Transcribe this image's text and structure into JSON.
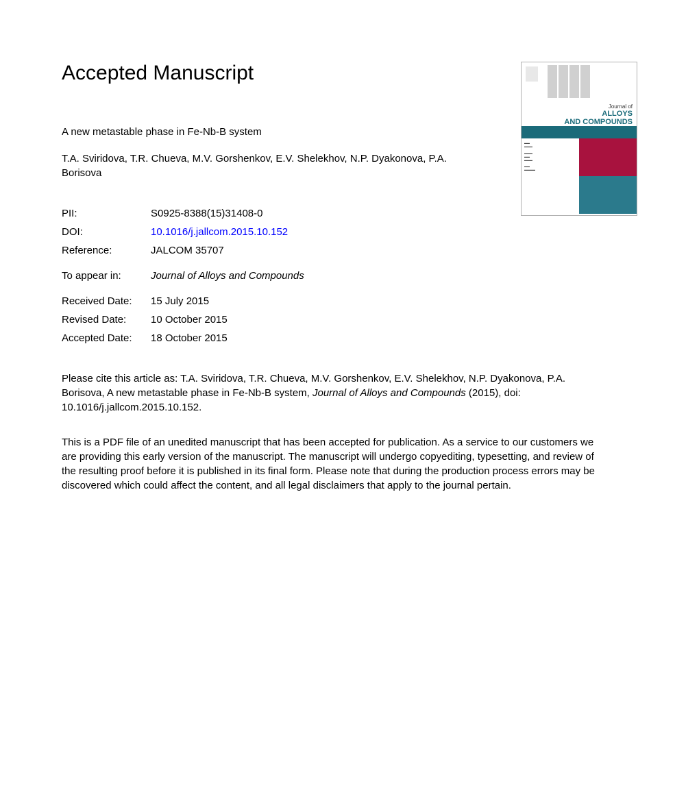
{
  "heading": "Accepted Manuscript",
  "article": {
    "title": "A new metastable phase in Fe-Nb-B system",
    "authors": "T.A. Sviridova, T.R. Chueva, M.V. Gorshenkov, E.V. Shelekhov, N.P. Dyakonova, P.A. Borisova"
  },
  "meta": {
    "pii_label": "PII:",
    "pii_value": "S0925-8388(15)31408-0",
    "doi_label": "DOI:",
    "doi_value": "10.1016/j.jallcom.2015.10.152",
    "ref_label": "Reference:",
    "ref_value": "JALCOM 35707",
    "appear_label": "To appear in:",
    "appear_value": "Journal of Alloys and Compounds",
    "received_label": "Received Date:",
    "received_value": "15 July 2015",
    "revised_label": "Revised Date:",
    "revised_value": "10 October 2015",
    "accepted_label": "Accepted Date:",
    "accepted_value": "18 October 2015"
  },
  "citation": {
    "prefix": "Please cite this article as: T.A. Sviridova, T.R. Chueva, M.V. Gorshenkov, E.V. Shelekhov, N.P. Dyakonova, P.A. Borisova, A new metastable phase in Fe-Nb-B system, ",
    "journal": "Journal of Alloys and Compounds",
    "suffix": " (2015), doi: 10.1016/j.jallcom.2015.10.152."
  },
  "disclaimer": "This is a PDF file of an unedited manuscript that has been accepted for publication. As a service to our customers we are providing this early version of the manuscript. The manuscript will undergo copyediting, typesetting, and review of the resulting proof before it is published in its final form. Please note that during the production process errors may be discovered which could affect the content, and all legal disclaimers that apply to the journal pertain.",
  "cover": {
    "journal_of": "Journal of",
    "line1": "ALLOYS",
    "line2": "AND COMPOUNDS",
    "colors": {
      "teal": "#1a6b7a",
      "maroon": "#a8123e",
      "teal2": "#2b7a8c",
      "border": "#b0b0b0"
    }
  },
  "styles": {
    "text_color": "#000000",
    "link_color": "#0000ff",
    "background": "#ffffff",
    "heading_fontsize": 30,
    "body_fontsize": 15
  }
}
